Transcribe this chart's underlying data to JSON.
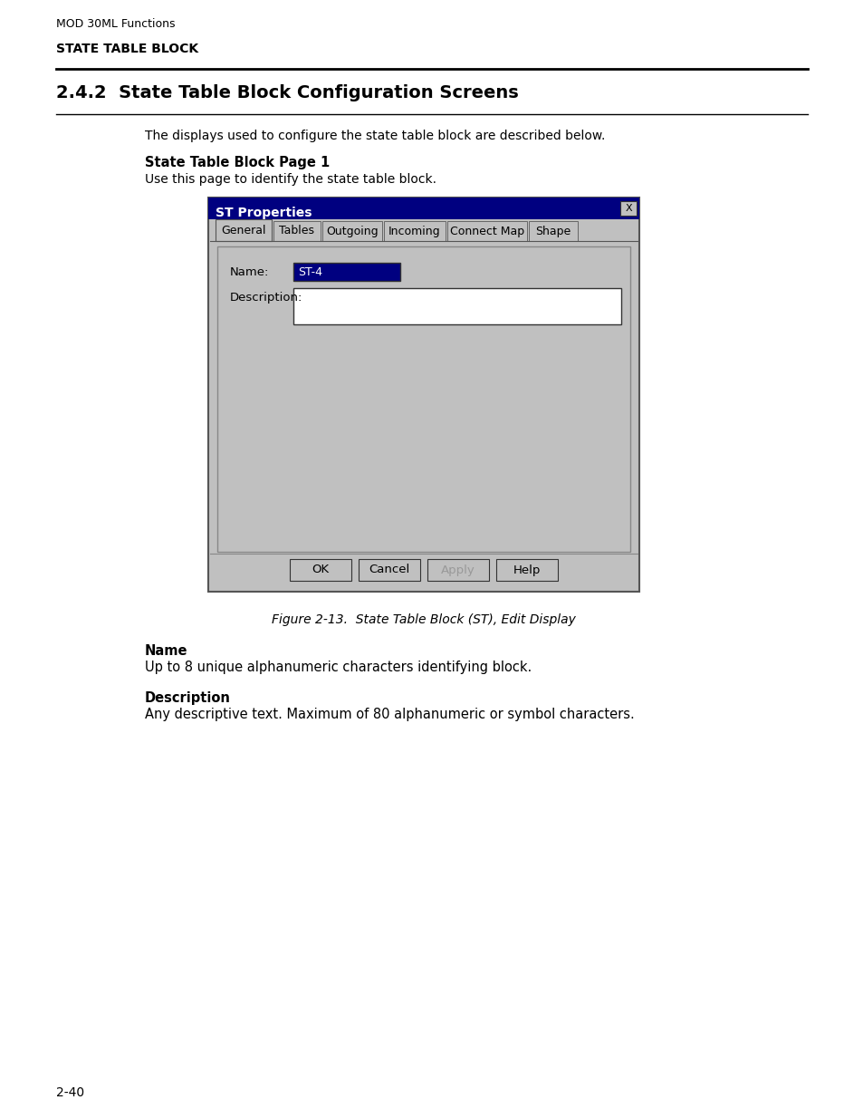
{
  "page_header": "MOD 30ML Functions",
  "section_header": "STATE TABLE BLOCK",
  "section_title": "2.4.2  State Table Block Configuration Screens",
  "intro_text": "The displays used to configure the state table block are described below.",
  "subsection_title": "State Table Block Page 1",
  "subsection_body": "Use this page to identify the state table block.",
  "dialog_title": "ST Properties",
  "tabs": [
    "General",
    "Tables",
    "Outgoing",
    "Incoming",
    "Connect Map",
    "Shape"
  ],
  "active_tab": "General",
  "name_label": "Name:",
  "name_value": "ST-4",
  "desc_label": "Description:",
  "buttons": [
    "OK",
    "Cancel",
    "Apply",
    "Help"
  ],
  "figure_caption": "Figure 2-13.  State Table Block (ST), Edit Display",
  "field1_title": "Name",
  "field1_body": "Up to 8 unique alphanumeric characters identifying block.",
  "field2_title": "Description",
  "field2_body": "Any descriptive text. Maximum of 80 alphanumeric or symbol characters.",
  "page_number": "2-40",
  "bg_color": "#ffffff",
  "dialog_bg": "#c0c0c0",
  "dialog_title_bg": "#000080",
  "dialog_title_fg": "#ffffff",
  "name_field_bg": "#000080",
  "name_field_fg": "#ffffff",
  "desc_field_bg": "#ffffff"
}
